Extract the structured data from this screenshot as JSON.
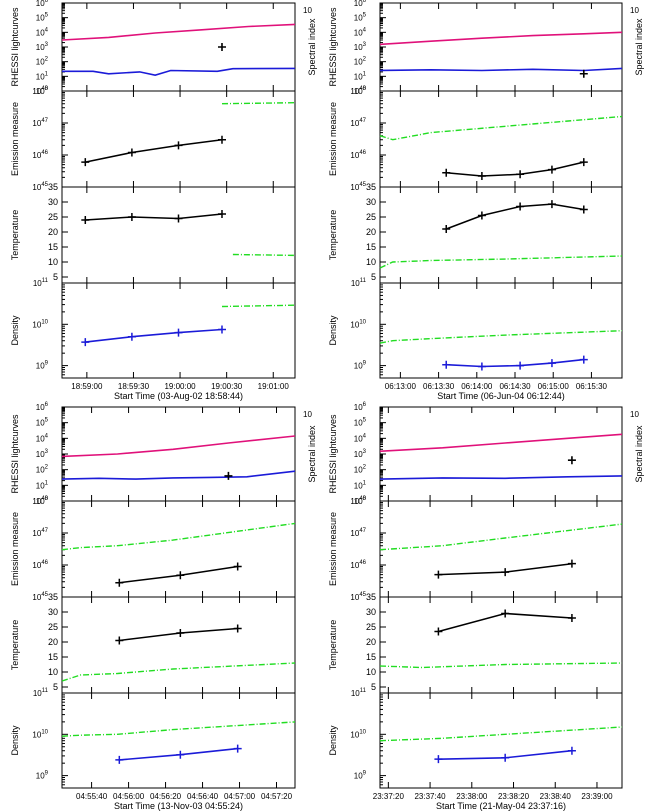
{
  "colors": {
    "pink": "#e0117a",
    "blue": "#1b1bd8",
    "green": "#22dd22",
    "black": "#000000"
  },
  "labels": {
    "rhessi": "RHESSI lightcurves",
    "spectral": "Spectral index",
    "spectral_max": "10",
    "em": "Emission measure",
    "temp": "Temperature",
    "dens": "Density"
  },
  "chart_data": [
    {
      "id": "p1",
      "type": "line",
      "xlabel": "Start Time (03-Aug-02 18:58:44)",
      "xticks": [
        "18:59:00",
        "18:59:30",
        "19:00:00",
        "19:00:30",
        "19:01:00"
      ],
      "xtick_secs": [
        16,
        46,
        76,
        106,
        136
      ],
      "xlim": [
        0,
        150
      ],
      "rhessi": {
        "pink": [
          [
            0,
            3000
          ],
          [
            30,
            4500
          ],
          [
            60,
            9000
          ],
          [
            90,
            15000
          ],
          [
            120,
            25000
          ],
          [
            150,
            35000
          ]
        ],
        "blue": [
          [
            0,
            22
          ],
          [
            20,
            22
          ],
          [
            30,
            15
          ],
          [
            50,
            20
          ],
          [
            60,
            12
          ],
          [
            70,
            25
          ],
          [
            100,
            22
          ],
          [
            110,
            33
          ],
          [
            150,
            35
          ]
        ],
        "cross": [
          [
            103,
            1000
          ]
        ]
      },
      "em": {
        "black": [
          [
            15,
            6e+45
          ],
          [
            45,
            1.2e+46
          ],
          [
            75,
            2e+46
          ],
          [
            103,
            3e+46
          ]
        ],
        "green": [
          [
            103,
            4e+47
          ],
          [
            150,
            4.3e+47
          ]
        ]
      },
      "temp": {
        "black": [
          [
            15,
            24
          ],
          [
            45,
            25
          ],
          [
            75,
            24.5
          ],
          [
            103,
            26
          ]
        ],
        "green": [
          [
            110,
            12.5
          ],
          [
            150,
            12.2
          ]
        ]
      },
      "dens": {
        "blue": [
          [
            15,
            3700000000.0
          ],
          [
            45,
            5000000000.0
          ],
          [
            75,
            6300000000.0
          ],
          [
            103,
            7500000000.0
          ]
        ],
        "green": [
          [
            103,
            27000000000.0
          ],
          [
            150,
            29000000000.0
          ]
        ]
      }
    },
    {
      "id": "p2",
      "type": "line",
      "xlabel": "Start Time (06-Jun-04 06:12:44)",
      "xticks": [
        "06:13:00",
        "06:13:30",
        "06:14:00",
        "06:14:30",
        "06:15:00",
        "06:15:30"
      ],
      "xtick_secs": [
        16,
        46,
        76,
        106,
        136,
        166
      ],
      "xlim": [
        0,
        190
      ],
      "rhessi": {
        "pink": [
          [
            0,
            1500
          ],
          [
            40,
            2500
          ],
          [
            80,
            4000
          ],
          [
            120,
            6000
          ],
          [
            160,
            8000
          ],
          [
            190,
            10000
          ]
        ],
        "blue": [
          [
            0,
            25
          ],
          [
            40,
            28
          ],
          [
            80,
            25
          ],
          [
            120,
            30
          ],
          [
            160,
            25
          ],
          [
            190,
            35
          ]
        ],
        "cross": [
          [
            160,
            15
          ]
        ]
      },
      "em": {
        "black": [
          [
            52,
            2.8e+45
          ],
          [
            80,
            2.2e+45
          ],
          [
            110,
            2.5e+45
          ],
          [
            135,
            3.5e+45
          ],
          [
            160,
            6e+45
          ]
        ],
        "green": [
          [
            0,
            4e+46
          ],
          [
            10,
            3e+46
          ],
          [
            40,
            5e+46
          ],
          [
            100,
            8e+46
          ],
          [
            190,
            1.6e+47
          ]
        ]
      },
      "temp": {
        "black": [
          [
            52,
            21
          ],
          [
            80,
            25.5
          ],
          [
            110,
            28.5
          ],
          [
            135,
            29.3
          ],
          [
            160,
            27.5
          ]
        ],
        "green": [
          [
            0,
            8
          ],
          [
            10,
            10
          ],
          [
            40,
            10.5
          ],
          [
            100,
            11
          ],
          [
            190,
            12
          ]
        ]
      },
      "dens": {
        "blue": [
          [
            52,
            1050000000.0
          ],
          [
            80,
            950000000.0
          ],
          [
            110,
            1000000000.0
          ],
          [
            135,
            1150000000.0
          ],
          [
            160,
            1400000000.0
          ]
        ],
        "green": [
          [
            0,
            3500000000.0
          ],
          [
            10,
            4000000000.0
          ],
          [
            40,
            4500000000.0
          ],
          [
            100,
            5500000000.0
          ],
          [
            190,
            7000000000.0
          ]
        ]
      }
    },
    {
      "id": "p3",
      "type": "line",
      "xlabel": "Start Time (13-Nov-03 04:55:24)",
      "xticks": [
        "04:55:40",
        "04:56:00",
        "04:56:20",
        "04:56:40",
        "04:57:00",
        "04:57:20"
      ],
      "xtick_secs": [
        16,
        36,
        56,
        76,
        96,
        116
      ],
      "xlim": [
        0,
        126
      ],
      "rhessi": {
        "pink": [
          [
            0,
            700
          ],
          [
            30,
            1000
          ],
          [
            60,
            2000
          ],
          [
            90,
            5000
          ],
          [
            126,
            14000
          ]
        ],
        "blue": [
          [
            0,
            25
          ],
          [
            20,
            28
          ],
          [
            40,
            25
          ],
          [
            60,
            30
          ],
          [
            80,
            32
          ],
          [
            100,
            35
          ],
          [
            126,
            80
          ]
        ],
        "cross": [
          [
            90,
            40
          ]
        ]
      },
      "em": {
        "black": [
          [
            31,
            2.8e+45
          ],
          [
            64,
            4.8e+45
          ],
          [
            95,
            9e+45
          ]
        ],
        "green": [
          [
            0,
            3e+46
          ],
          [
            10,
            3.5e+46
          ],
          [
            30,
            4e+46
          ],
          [
            60,
            6e+46
          ],
          [
            126,
            2e+47
          ]
        ]
      },
      "temp": {
        "black": [
          [
            31,
            20.5
          ],
          [
            64,
            23
          ],
          [
            95,
            24.5
          ]
        ],
        "green": [
          [
            0,
            7
          ],
          [
            10,
            9
          ],
          [
            30,
            9.5
          ],
          [
            60,
            11
          ],
          [
            126,
            13
          ]
        ]
      },
      "dens": {
        "blue": [
          [
            31,
            2400000000.0
          ],
          [
            64,
            3200000000.0
          ],
          [
            95,
            4500000000.0
          ]
        ],
        "green": [
          [
            0,
            9000000000.0
          ],
          [
            10,
            9500000000.0
          ],
          [
            30,
            10000000000.0
          ],
          [
            60,
            13000000000.0
          ],
          [
            126,
            20000000000.0
          ]
        ]
      }
    },
    {
      "id": "p4",
      "type": "line",
      "xlabel": "Start Time (21-May-04 23:37:16)",
      "xticks": [
        "23:37:20",
        "23:37:40",
        "23:38:00",
        "23:38:20",
        "23:38:40",
        "23:39:00"
      ],
      "xtick_secs": [
        4,
        24,
        44,
        64,
        84,
        104
      ],
      "xlim": [
        0,
        116
      ],
      "rhessi": {
        "pink": [
          [
            0,
            1500
          ],
          [
            30,
            2500
          ],
          [
            60,
            5000
          ],
          [
            90,
            10000
          ],
          [
            116,
            18000
          ]
        ],
        "blue": [
          [
            0,
            25
          ],
          [
            30,
            30
          ],
          [
            60,
            28
          ],
          [
            90,
            35
          ],
          [
            116,
            40
          ]
        ],
        "cross": [
          [
            92,
            400
          ]
        ]
      },
      "em": {
        "black": [
          [
            28,
            5e+45
          ],
          [
            60,
            6e+45
          ],
          [
            92,
            1.1e+46
          ]
        ],
        "green": [
          [
            0,
            3e+46
          ],
          [
            30,
            4e+46
          ],
          [
            60,
            7e+46
          ],
          [
            116,
            1.9e+47
          ]
        ]
      },
      "temp": {
        "black": [
          [
            28,
            23.5
          ],
          [
            60,
            29.5
          ],
          [
            92,
            28
          ]
        ],
        "green": [
          [
            0,
            12
          ],
          [
            20,
            11.5
          ],
          [
            60,
            12.5
          ],
          [
            116,
            13
          ]
        ]
      },
      "dens": {
        "blue": [
          [
            28,
            2500000000.0
          ],
          [
            60,
            2700000000.0
          ],
          [
            92,
            4000000000.0
          ]
        ],
        "green": [
          [
            0,
            7000000000.0
          ],
          [
            30,
            8000000000.0
          ],
          [
            60,
            10000000000.0
          ],
          [
            116,
            15000000000.0
          ]
        ]
      }
    }
  ]
}
